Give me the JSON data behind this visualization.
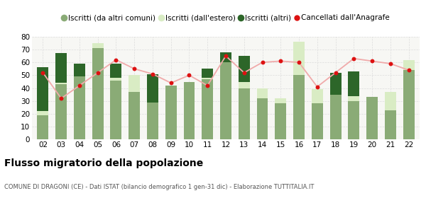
{
  "years": [
    "02",
    "03",
    "04",
    "05",
    "06",
    "07",
    "08",
    "09",
    "10",
    "11",
    "12",
    "13",
    "14",
    "15",
    "16",
    "17",
    "18",
    "19",
    "20",
    "21",
    "22"
  ],
  "iscritti_comuni": [
    19,
    43,
    49,
    71,
    46,
    37,
    29,
    42,
    45,
    47,
    60,
    40,
    32,
    28,
    50,
    28,
    35,
    30,
    33,
    23,
    54
  ],
  "iscritti_estero": [
    3,
    1,
    0,
    4,
    2,
    13,
    0,
    0,
    0,
    1,
    0,
    5,
    8,
    4,
    26,
    11,
    0,
    4,
    0,
    14,
    8
  ],
  "iscritti_altri": [
    34,
    23,
    10,
    0,
    11,
    0,
    22,
    0,
    0,
    7,
    8,
    20,
    0,
    0,
    0,
    0,
    17,
    19,
    0,
    0,
    0
  ],
  "cancellati": [
    52,
    32,
    42,
    52,
    62,
    55,
    51,
    44,
    50,
    42,
    65,
    52,
    60,
    61,
    60,
    41,
    52,
    63,
    61,
    59,
    54
  ],
  "color_comuni": "#8aab76",
  "color_estero": "#d9ecc4",
  "color_altri": "#2d6629",
  "color_cancellati": "#dd1111",
  "color_line": "#f0aaaa",
  "ylim_min": 0,
  "ylim_max": 80,
  "yticks": [
    0,
    10,
    20,
    30,
    40,
    50,
    60,
    70,
    80
  ],
  "title": "Flusso migratorio della popolazione",
  "subtitle": "COMUNE DI DRAGONI (CE) - Dati ISTAT (bilancio demografico 1 gen-31 dic) - Elaborazione TUTTITALIA.IT",
  "legend_label_comuni": "Iscritti (da altri comuni)",
  "legend_label_estero": "Iscritti (dall'estero)",
  "legend_label_altri": "Iscritti (altri)",
  "legend_label_cancellati": "Cancellati dall'Anagrafe",
  "ax_bg": "#f7f7f4",
  "grid_color": "#dddddd"
}
